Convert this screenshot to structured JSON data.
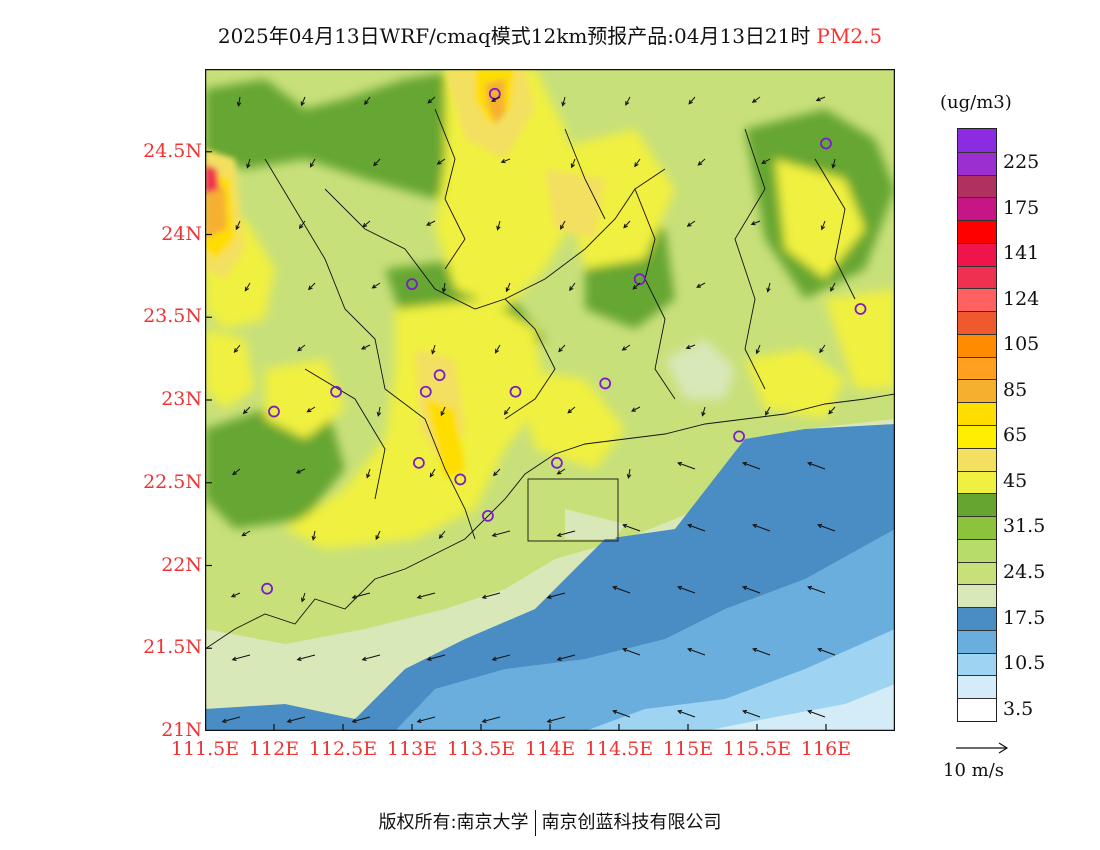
{
  "title": {
    "main": "2025年04月13日WRF/cmaq模式12km预报产品:04月13日21时",
    "pollutant": "PM2.5"
  },
  "map": {
    "lon_range": [
      111.5,
      116.5
    ],
    "lat_range": [
      21,
      25
    ]
  },
  "axes": {
    "lat_ticks": [
      {
        "label": "24.5N",
        "value": 24.5
      },
      {
        "label": "24N",
        "value": 24.0
      },
      {
        "label": "23.5N",
        "value": 23.5
      },
      {
        "label": "23N",
        "value": 23.0
      },
      {
        "label": "22.5N",
        "value": 22.5
      },
      {
        "label": "22N",
        "value": 22.0
      },
      {
        "label": "21.5N",
        "value": 21.5
      },
      {
        "label": "21N",
        "value": 21.0
      }
    ],
    "lon_ticks": [
      {
        "label": "111.5E",
        "value": 111.5
      },
      {
        "label": "112E",
        "value": 112.0
      },
      {
        "label": "112.5E",
        "value": 112.5
      },
      {
        "label": "113E",
        "value": 113.0
      },
      {
        "label": "113.5E",
        "value": 113.5
      },
      {
        "label": "114E",
        "value": 114.0
      },
      {
        "label": "114.5E",
        "value": 114.5
      },
      {
        "label": "115E",
        "value": 115.0
      },
      {
        "label": "115.5E",
        "value": 115.5
      },
      {
        "label": "116E",
        "value": 116.0
      }
    ]
  },
  "legend": {
    "unit": "(ug/m3)",
    "levels": [
      {
        "color": "#8b2be2",
        "label": ""
      },
      {
        "color": "#9b30d0",
        "label": "225"
      },
      {
        "color": "#b03060",
        "label": ""
      },
      {
        "color": "#c71585",
        "label": "175"
      },
      {
        "color": "#ff0000",
        "label": ""
      },
      {
        "color": "#f0144c",
        "label": "141"
      },
      {
        "color": "#f03050",
        "label": ""
      },
      {
        "color": "#ff6060",
        "label": "124"
      },
      {
        "color": "#ee5a2c",
        "label": ""
      },
      {
        "color": "#ff8c00",
        "label": "105"
      },
      {
        "color": "#ffa020",
        "label": ""
      },
      {
        "color": "#f5b030",
        "label": "85"
      },
      {
        "color": "#ffdd00",
        "label": ""
      },
      {
        "color": "#ffee00",
        "label": "65"
      },
      {
        "color": "#f3e060",
        "label": ""
      },
      {
        "color": "#f0f040",
        "label": "45"
      },
      {
        "color": "#66a630",
        "label": ""
      },
      {
        "color": "#8cc23c",
        "label": "31.5"
      },
      {
        "color": "#b8dc6a",
        "label": ""
      },
      {
        "color": "#c8e07a",
        "label": "24.5"
      },
      {
        "color": "#d8e8b8",
        "label": ""
      },
      {
        "color": "#4a8cc4",
        "label": "17.5"
      },
      {
        "color": "#6aaede",
        "label": ""
      },
      {
        "color": "#9ed4f2",
        "label": "10.5"
      },
      {
        "color": "#d4ecf8",
        "label": ""
      },
      {
        "color": "#ffffff",
        "label": "3.5"
      }
    ]
  },
  "wind_reference": {
    "label": "10 m/s",
    "speed": 10
  },
  "stations": [
    {
      "lon": 113.6,
      "lat": 24.85
    },
    {
      "lon": 116.0,
      "lat": 24.55
    },
    {
      "lon": 113.0,
      "lat": 23.7
    },
    {
      "lon": 114.65,
      "lat": 23.73
    },
    {
      "lon": 116.25,
      "lat": 23.55
    },
    {
      "lon": 113.2,
      "lat": 23.15
    },
    {
      "lon": 113.1,
      "lat": 23.05
    },
    {
      "lon": 112.45,
      "lat": 23.05
    },
    {
      "lon": 112.0,
      "lat": 22.93
    },
    {
      "lon": 113.75,
      "lat": 23.05
    },
    {
      "lon": 114.4,
      "lat": 23.1
    },
    {
      "lon": 115.37,
      "lat": 22.78
    },
    {
      "lon": 113.05,
      "lat": 22.62
    },
    {
      "lon": 113.35,
      "lat": 22.52
    },
    {
      "lon": 114.05,
      "lat": 22.62
    },
    {
      "lon": 113.55,
      "lat": 22.3
    },
    {
      "lon": 111.95,
      "lat": 21.86
    }
  ],
  "copyright": {
    "prefix": "版权所有:",
    "org1": "南京大学",
    "org2": "南京创蓝科技有限公司"
  }
}
